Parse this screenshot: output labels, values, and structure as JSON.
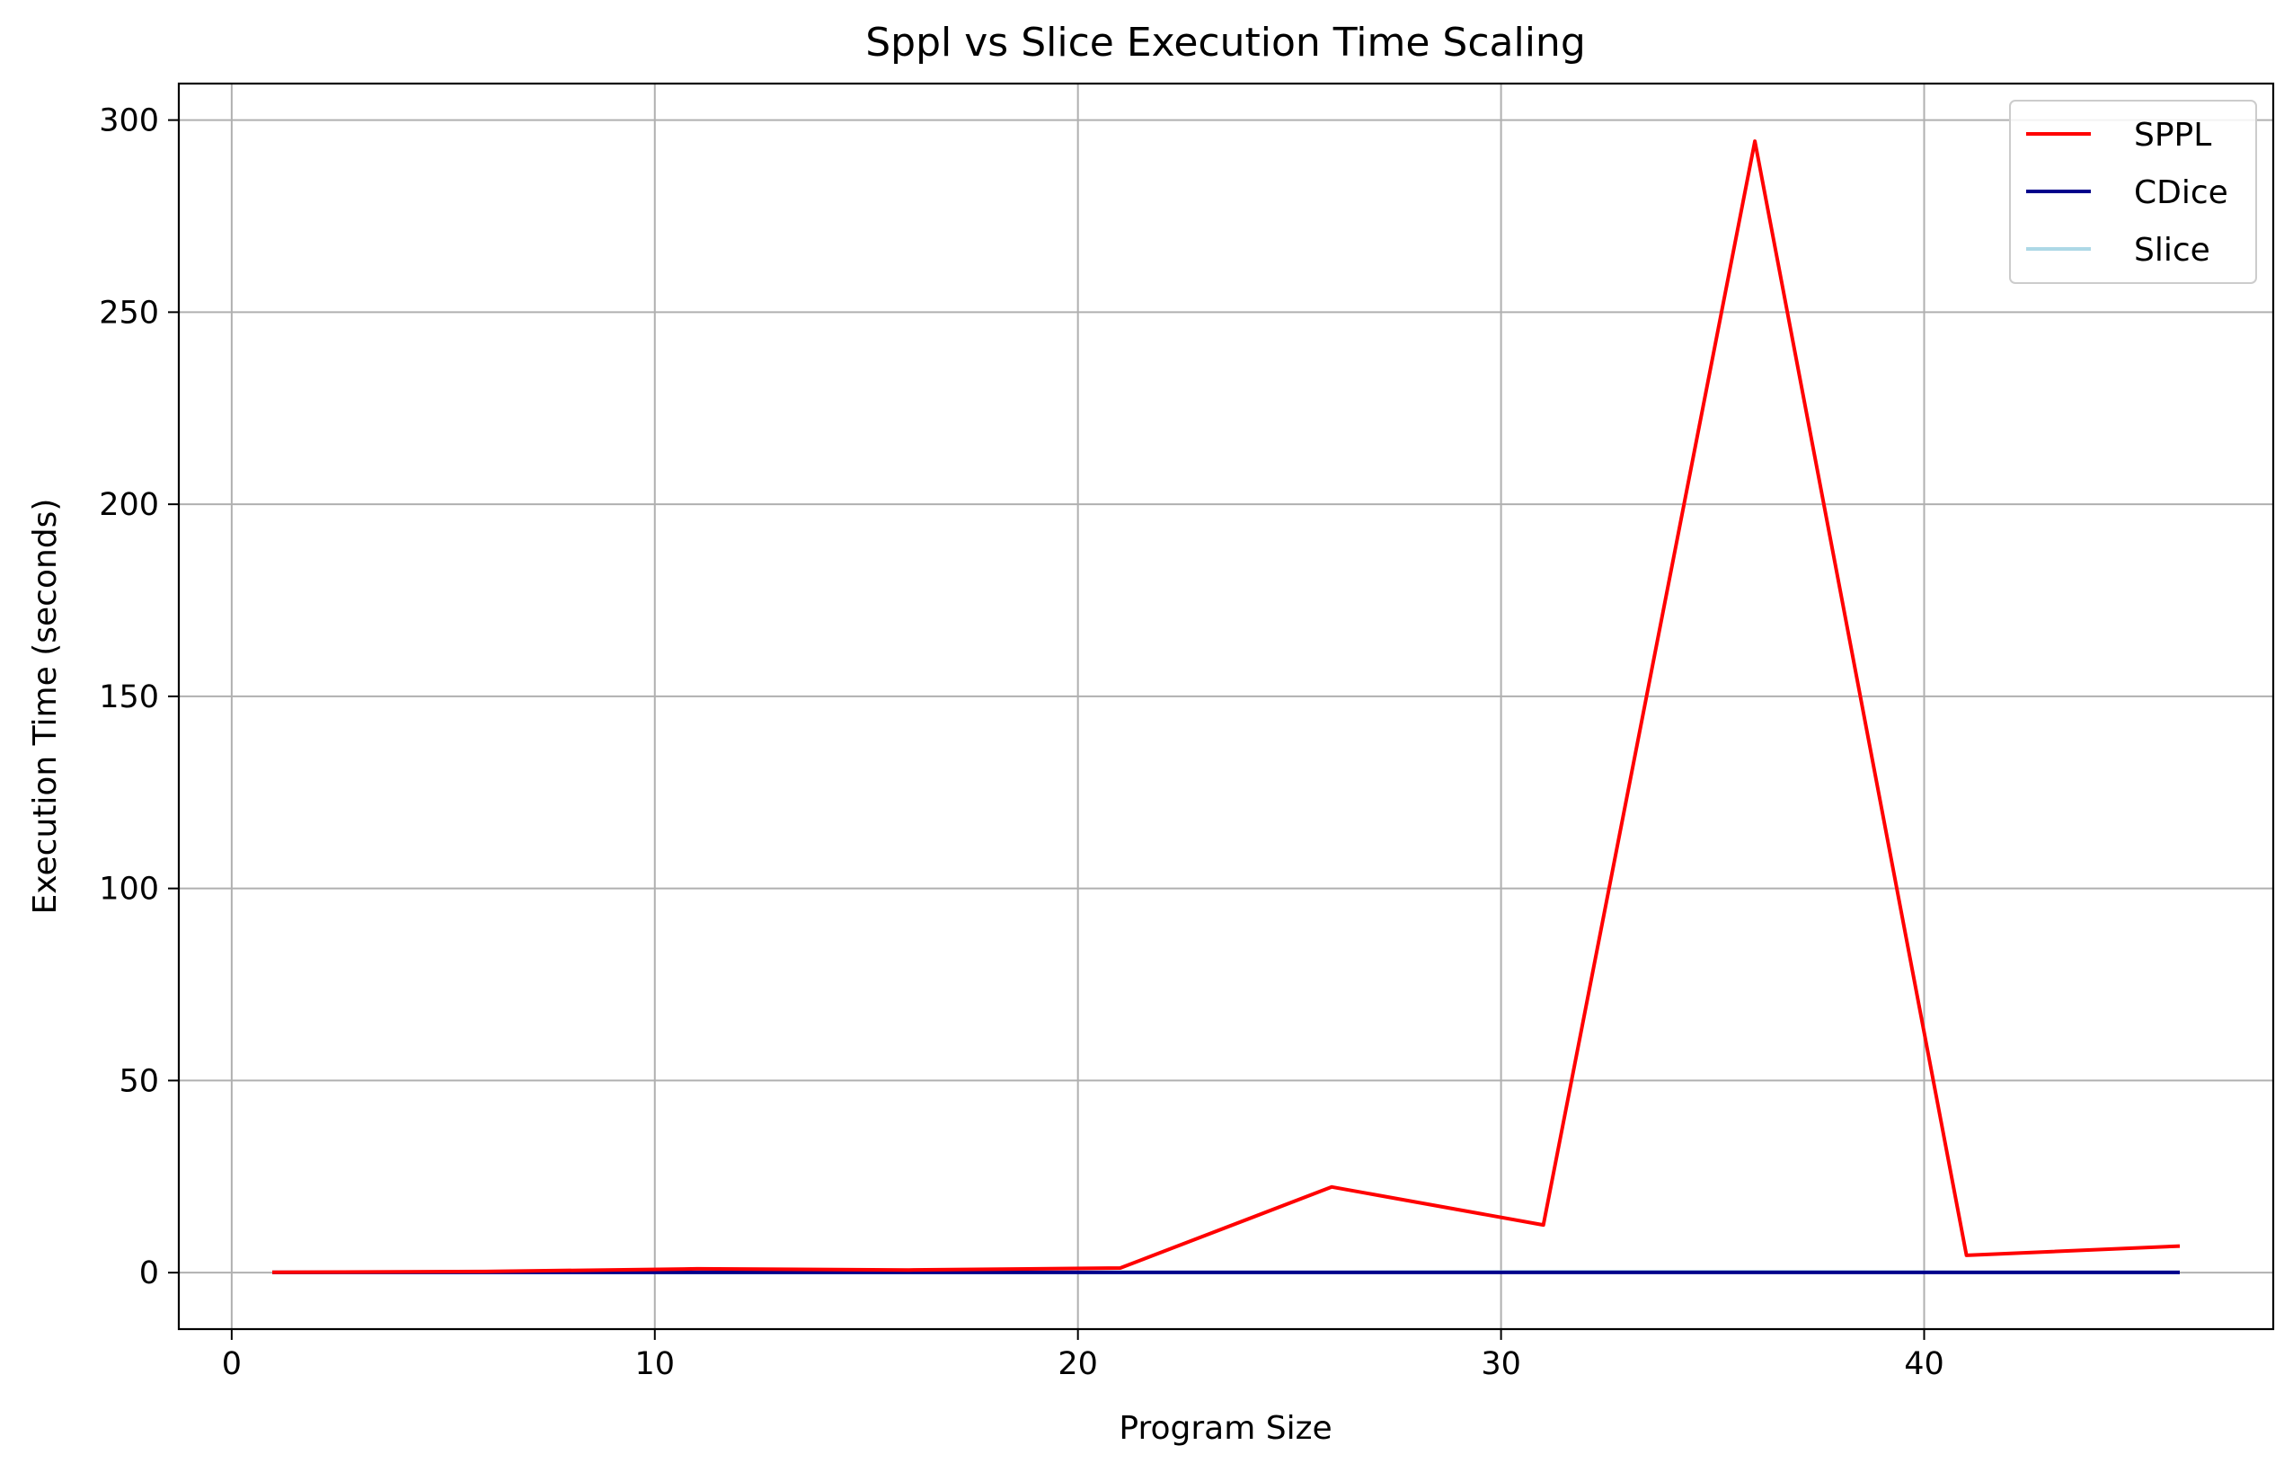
{
  "chart_data": {
    "type": "line",
    "title": "Sppl vs Slice Execution Time Scaling",
    "xlabel": "Program Size",
    "ylabel": "Execution Time (seconds)",
    "xlim": [
      -1.25,
      48.25
    ],
    "ylim": [
      -14.7,
      309.5
    ],
    "xticks": [
      0,
      10,
      20,
      30,
      40
    ],
    "yticks": [
      0,
      50,
      100,
      150,
      200,
      250,
      300
    ],
    "grid": true,
    "legend_position": "top-right",
    "x": [
      1,
      6,
      11,
      16,
      21,
      26,
      31,
      36,
      41,
      46
    ],
    "series": [
      {
        "name": "SPPL",
        "color": "#ff0000",
        "values": [
          0.1,
          0.3,
          1.0,
          0.7,
          1.2,
          22.3,
          12.4,
          294.5,
          4.5,
          6.9
        ]
      },
      {
        "name": "CDice",
        "color": "#00008b",
        "values": [
          0.05,
          0.05,
          0.05,
          0.05,
          0.05,
          0.05,
          0.05,
          0.05,
          0.05,
          0.05
        ]
      },
      {
        "name": "Slice",
        "color": "#add8e6",
        "values": [
          0.1,
          0.1,
          0.1,
          0.1,
          0.1,
          0.1,
          0.2,
          0.2,
          0.1,
          0.1
        ]
      }
    ]
  }
}
